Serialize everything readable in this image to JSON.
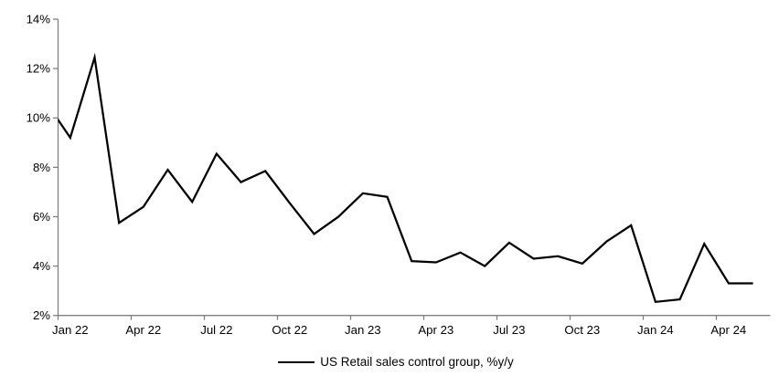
{
  "legend": {
    "label": "US Retail sales control group, %y/y"
  },
  "colors": {
    "line": "#000000",
    "axis": "#808080",
    "text": "#000000",
    "background": "#ffffff"
  },
  "chart_data": {
    "type": "line",
    "title": "",
    "xlabel": "",
    "ylabel": "",
    "grid": false,
    "legend_position": "bottom-center",
    "ylim": [
      2,
      14
    ],
    "ytick_step": 2,
    "ytick_labels": [
      "2%",
      "4%",
      "6%",
      "8%",
      "10%",
      "12%",
      "14%"
    ],
    "xtick_labels": [
      "Jan 22",
      "Apr 22",
      "Jul 22",
      "Oct 22",
      "Jan 23",
      "Apr 23",
      "Jul 23",
      "Oct 23",
      "Jan 24",
      "Apr 24"
    ],
    "x": [
      "Dec 21",
      "Jan 22",
      "Feb 22",
      "Mar 22",
      "Apr 22",
      "May 22",
      "Jun 22",
      "Jul 22",
      "Aug 22",
      "Sep 22",
      "Oct 22",
      "Nov 22",
      "Dec 22",
      "Jan 23",
      "Feb 23",
      "Mar 23",
      "Apr 23",
      "May 23",
      "Jun 23",
      "Jul 23",
      "Aug 23",
      "Sep 23",
      "Oct 23",
      "Nov 23",
      "Dec 23",
      "Jan 24",
      "Feb 24",
      "Mar 24",
      "Apr 24",
      "May 24"
    ],
    "series": [
      {
        "name": "US Retail sales control group, %y/y",
        "values": [
          10.65,
          9.2,
          12.45,
          5.75,
          6.4,
          7.9,
          6.6,
          8.55,
          7.4,
          7.85,
          6.55,
          5.3,
          6.0,
          6.95,
          6.8,
          4.2,
          4.15,
          4.55,
          4.0,
          4.95,
          4.3,
          4.4,
          4.1,
          5.0,
          5.65,
          2.55,
          2.65,
          4.9,
          3.3,
          3.3
        ]
      }
    ],
    "first_point_clipped_at_left_axis": true
  }
}
